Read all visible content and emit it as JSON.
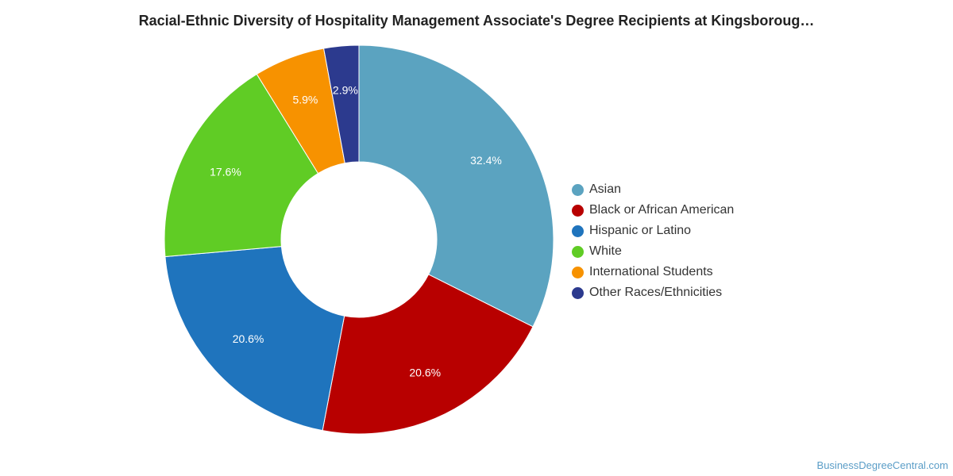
{
  "chart_data": {
    "type": "pie",
    "title": "Racial-Ethnic Diversity of Hospitality Management Associate's Degree Recipients at Kingsboroug…",
    "labels": [
      "Asian",
      "Black or African American",
      "Hispanic or Latino",
      "White",
      "International Students",
      "Other Races/Ethnicities"
    ],
    "values": [
      32.4,
      20.6,
      20.6,
      17.6,
      5.9,
      2.9
    ],
    "value_labels": [
      "32.4%",
      "20.6%",
      "20.6%",
      "17.6%",
      "5.9%",
      "2.9%"
    ],
    "colors": [
      "#5ba3c0",
      "#b80000",
      "#1f74bd",
      "#60cc25",
      "#f79200",
      "#2c3a8e"
    ],
    "donut": true,
    "legend_position": "right"
  },
  "watermark": "BusinessDegreeCentral.com"
}
